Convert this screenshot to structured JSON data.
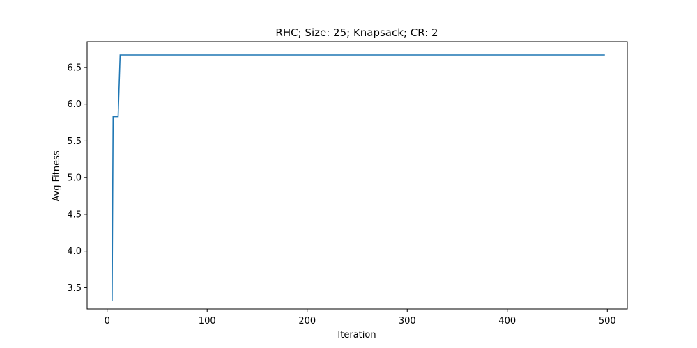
{
  "chart_data": {
    "type": "line",
    "title": "RHC; Size: 25; Knapsack; CR: 2",
    "xlabel": "Iteration",
    "ylabel": "Avg Fitness",
    "xlim": [
      -20,
      520
    ],
    "ylim": [
      3.21,
      6.85
    ],
    "xticks": [
      0,
      100,
      200,
      300,
      400,
      500
    ],
    "yticks": [
      3.5,
      4.0,
      4.5,
      5.0,
      5.5,
      6.0,
      6.5
    ],
    "xtick_labels": [
      "0",
      "100",
      "200",
      "300",
      "400",
      "500"
    ],
    "ytick_labels": [
      "3.5",
      "4.0",
      "4.5",
      "5.0",
      "5.5",
      "6.0",
      "6.5"
    ],
    "grid": false,
    "legend": "none",
    "series": [
      {
        "color": "#1f77b4",
        "x": [
          5,
          6,
          10,
          11,
          12,
          13,
          497
        ],
        "y": [
          3.33,
          5.83,
          5.83,
          5.83,
          6.25,
          6.67,
          6.67
        ]
      }
    ]
  }
}
